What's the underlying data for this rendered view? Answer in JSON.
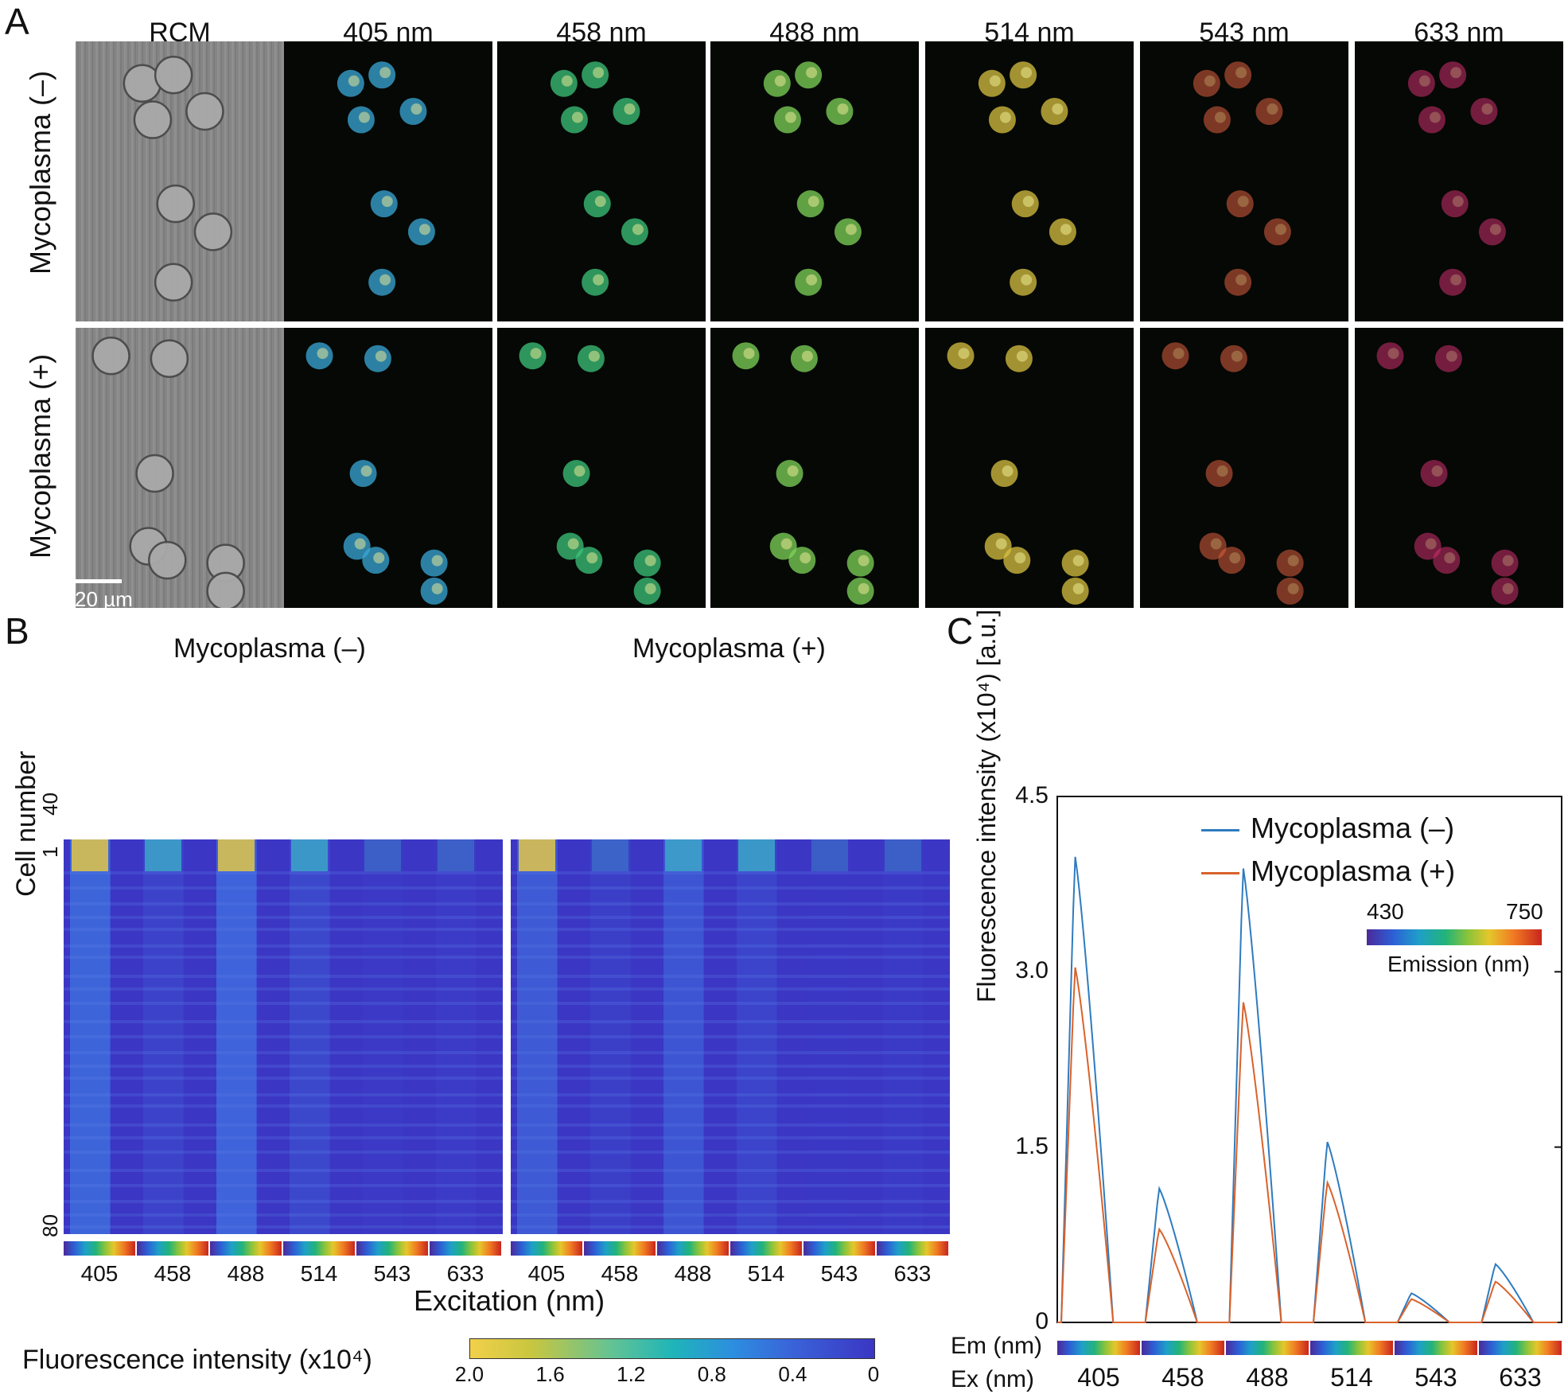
{
  "panels": {
    "a": "A",
    "b": "B",
    "c": "C"
  },
  "panel_a": {
    "columns": [
      "RCM",
      "405 nm",
      "458 nm",
      "488 nm",
      "514 nm",
      "543 nm",
      "633 nm"
    ],
    "rows": [
      "Mycoplasma (–)",
      "Mycoplasma (+)"
    ],
    "scale_bar": "20 µm",
    "channel_colors": [
      "#808080",
      "#3aa8d8",
      "#3cc47a",
      "#7fd45a",
      "#d8c040",
      "#e06040",
      "#d03070"
    ]
  },
  "panel_b": {
    "titles": [
      "Mycoplasma (–)",
      "Mycoplasma (+)"
    ],
    "y_label": "Cell number",
    "y_ticks": [
      "1",
      "40",
      "80"
    ],
    "x_ticks": [
      "405",
      "458",
      "488",
      "514",
      "543",
      "633"
    ],
    "x_label": "Excitation (nm)",
    "colorbar_label": "Fluorescence intensity (x10⁴)",
    "colorbar_ticks": [
      "2.0",
      "1.6",
      "1.2",
      "0.8",
      "0.4",
      "0"
    ]
  },
  "chart_data": {
    "type": "line",
    "ylabel": "Fluorescence intensity (x10⁴) [a.u.]",
    "ylim": [
      0,
      4.5
    ],
    "y_ticks": [
      "0",
      "1.5",
      "3.0",
      "4.5"
    ],
    "categories": [
      "405",
      "458",
      "488",
      "514",
      "543",
      "633"
    ],
    "em_label": "Em (nm)",
    "ex_label": "Ex (nm)",
    "emission_scale": {
      "min": "430",
      "max": "750",
      "label": "Emission (nm)"
    },
    "series": [
      {
        "name": "Mycoplasma (–)",
        "color": "#2f7bbf",
        "peaks": [
          4.0,
          1.15,
          3.9,
          1.55,
          0.25,
          0.5
        ]
      },
      {
        "name": "Mycoplasma (+)",
        "color": "#d9622b",
        "peaks": [
          3.05,
          0.8,
          2.75,
          1.2,
          0.2,
          0.35
        ]
      }
    ]
  }
}
